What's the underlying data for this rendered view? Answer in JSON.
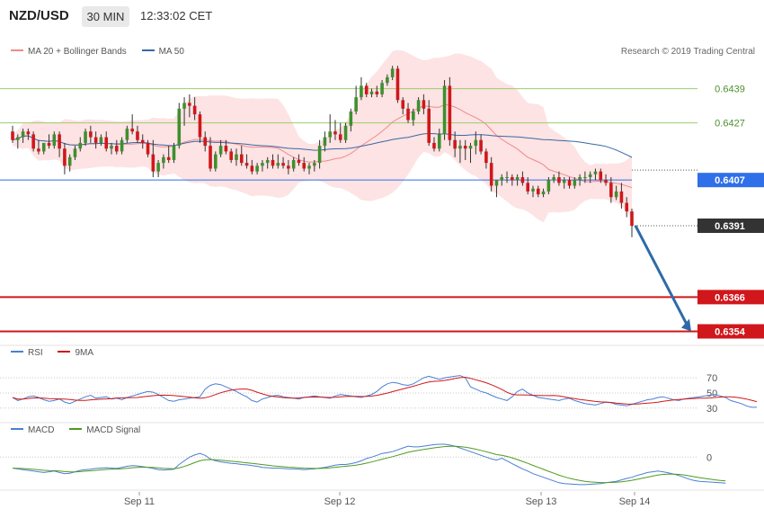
{
  "header": {
    "symbol": "NZD/USD",
    "timeframe": "30 MIN",
    "time": "12:33:02 CET"
  },
  "credit": "Research © 2019 Trading Central",
  "colors": {
    "bull": "#3f8f2f",
    "bear": "#d0171b",
    "bb_fill": "#fde3e3",
    "ma20": "#f08a8a",
    "ma50": "#3a67a6",
    "support": "#d0171b",
    "resistance": "#9ccc6d",
    "current": "#2f6fe8",
    "last": "#333333",
    "rsi": "#4a7fd3",
    "rsi_ma": "#d0171b",
    "macd": "#4a7fd3",
    "macd_signal": "#4f9a1f",
    "arrow": "#2f6aa8"
  },
  "legends": {
    "main": [
      {
        "label": "MA 20 + Bollinger Bands",
        "color": "#f08a8a"
      },
      {
        "label": "MA 50",
        "color": "#3a67a6"
      }
    ],
    "rsi": [
      {
        "label": "RSI",
        "color": "#4a7fd3"
      },
      {
        "label": "9MA",
        "color": "#d0171b"
      }
    ],
    "macd": [
      {
        "label": "MACD",
        "color": "#4a7fd3"
      },
      {
        "label": "MACD Signal",
        "color": "#4f9a1f"
      }
    ]
  },
  "chart_data": [
    {
      "type": "candlestick",
      "ylim": [
        0.6351,
        0.6448
      ],
      "levels": [
        {
          "value": 0.6439,
          "label": "0.6439",
          "kind": "resistance"
        },
        {
          "value": 0.6427,
          "label": "0.6427",
          "kind": "resistance"
        },
        {
          "value": 0.6407,
          "label": "0.6407",
          "kind": "current"
        },
        {
          "value": 0.6391,
          "label": "0.6391",
          "kind": "last"
        },
        {
          "value": 0.6366,
          "label": "0.6366",
          "kind": "support"
        },
        {
          "value": 0.6354,
          "label": "0.6354",
          "kind": "support"
        }
      ],
      "x_ticks": [
        "Sep 11",
        "Sep 12",
        "Sep 13",
        "Sep 14"
      ],
      "candles": [
        [
          0.6424,
          0.6426,
          0.642,
          0.6421
        ],
        [
          0.6421,
          0.6423,
          0.6418,
          0.6422
        ],
        [
          0.6422,
          0.6425,
          0.642,
          0.6424
        ],
        [
          0.6424,
          0.6425,
          0.6421,
          0.6423
        ],
        [
          0.6423,
          0.6424,
          0.6417,
          0.6418
        ],
        [
          0.6418,
          0.6421,
          0.6416,
          0.6417
        ],
        [
          0.6417,
          0.642,
          0.6416,
          0.642
        ],
        [
          0.642,
          0.6423,
          0.6418,
          0.6419
        ],
        [
          0.6419,
          0.6424,
          0.6418,
          0.6423
        ],
        [
          0.6423,
          0.6424,
          0.6415,
          0.6418
        ],
        [
          0.6418,
          0.642,
          0.6409,
          0.6412
        ],
        [
          0.6412,
          0.6416,
          0.641,
          0.6415
        ],
        [
          0.6415,
          0.6419,
          0.6414,
          0.6418
        ],
        [
          0.6418,
          0.6422,
          0.6417,
          0.642
        ],
        [
          0.642,
          0.6425,
          0.6419,
          0.6424
        ],
        [
          0.6424,
          0.6426,
          0.642,
          0.6422
        ],
        [
          0.6422,
          0.6424,
          0.6418,
          0.642
        ],
        [
          0.642,
          0.6423,
          0.6419,
          0.6422
        ],
        [
          0.6422,
          0.6424,
          0.6417,
          0.6418
        ],
        [
          0.6418,
          0.642,
          0.6416,
          0.6419
        ],
        [
          0.6419,
          0.6421,
          0.6416,
          0.6417
        ],
        [
          0.6417,
          0.6422,
          0.6416,
          0.6421
        ],
        [
          0.6421,
          0.6426,
          0.642,
          0.6425
        ],
        [
          0.6425,
          0.643,
          0.6423,
          0.6424
        ],
        [
          0.6424,
          0.6426,
          0.642,
          0.6421
        ],
        [
          0.6421,
          0.6423,
          0.6418,
          0.642
        ],
        [
          0.642,
          0.6421,
          0.6415,
          0.6416
        ],
        [
          0.6416,
          0.6421,
          0.6408,
          0.641
        ],
        [
          0.641,
          0.6414,
          0.6408,
          0.6413
        ],
        [
          0.6413,
          0.6416,
          0.6411,
          0.6415
        ],
        [
          0.6415,
          0.6419,
          0.6413,
          0.6414
        ],
        [
          0.6414,
          0.642,
          0.6413,
          0.6419
        ],
        [
          0.6419,
          0.6434,
          0.6418,
          0.6432
        ],
        [
          0.6432,
          0.6436,
          0.6426,
          0.6434
        ],
        [
          0.6434,
          0.6437,
          0.6429,
          0.6433
        ],
        [
          0.6433,
          0.6436,
          0.6428,
          0.643
        ],
        [
          0.643,
          0.6431,
          0.642,
          0.6422
        ],
        [
          0.6422,
          0.6424,
          0.6417,
          0.6419
        ],
        [
          0.6419,
          0.6422,
          0.641,
          0.6411
        ],
        [
          0.6411,
          0.6417,
          0.641,
          0.6416
        ],
        [
          0.6416,
          0.6421,
          0.6415,
          0.6419
        ],
        [
          0.6419,
          0.6421,
          0.6416,
          0.6417
        ],
        [
          0.6417,
          0.6418,
          0.6413,
          0.6414
        ],
        [
          0.6414,
          0.6418,
          0.6412,
          0.6416
        ],
        [
          0.6416,
          0.6419,
          0.6412,
          0.6413
        ],
        [
          0.6413,
          0.6416,
          0.6411,
          0.6412
        ],
        [
          0.6412,
          0.6414,
          0.6409,
          0.641
        ],
        [
          0.641,
          0.6413,
          0.6409,
          0.6412
        ],
        [
          0.6412,
          0.6414,
          0.641,
          0.6413
        ],
        [
          0.6413,
          0.6415,
          0.6411,
          0.6414
        ],
        [
          0.6414,
          0.6416,
          0.6411,
          0.6412
        ],
        [
          0.6412,
          0.6416,
          0.6411,
          0.6413
        ],
        [
          0.6413,
          0.6415,
          0.6411,
          0.6412
        ],
        [
          0.6412,
          0.6414,
          0.6409,
          0.6411
        ],
        [
          0.6411,
          0.6415,
          0.641,
          0.6414
        ],
        [
          0.6414,
          0.6416,
          0.6412,
          0.6413
        ],
        [
          0.6413,
          0.6415,
          0.641,
          0.6411
        ],
        [
          0.6411,
          0.6413,
          0.6409,
          0.6412
        ],
        [
          0.6412,
          0.6414,
          0.641,
          0.6413
        ],
        [
          0.6413,
          0.6421,
          0.6411,
          0.6419
        ],
        [
          0.6419,
          0.6424,
          0.6417,
          0.6422
        ],
        [
          0.6422,
          0.643,
          0.642,
          0.6424
        ],
        [
          0.6424,
          0.6428,
          0.6421,
          0.6423
        ],
        [
          0.6423,
          0.6427,
          0.642,
          0.6421
        ],
        [
          0.6421,
          0.6427,
          0.642,
          0.6426
        ],
        [
          0.6426,
          0.6432,
          0.6424,
          0.6431
        ],
        [
          0.6431,
          0.644,
          0.643,
          0.6436
        ],
        [
          0.6436,
          0.6443,
          0.6435,
          0.644
        ],
        [
          0.644,
          0.6441,
          0.6436,
          0.6437
        ],
        [
          0.6437,
          0.6439,
          0.6436,
          0.6438
        ],
        [
          0.6438,
          0.644,
          0.6436,
          0.6437
        ],
        [
          0.6437,
          0.6442,
          0.6436,
          0.6441
        ],
        [
          0.6441,
          0.6444,
          0.644,
          0.6443
        ],
        [
          0.6443,
          0.6447,
          0.6442,
          0.6446
        ],
        [
          0.6446,
          0.6447,
          0.6434,
          0.6435
        ],
        [
          0.6435,
          0.6436,
          0.643,
          0.6432
        ],
        [
          0.6432,
          0.6434,
          0.6427,
          0.6428
        ],
        [
          0.6428,
          0.6432,
          0.6426,
          0.6431
        ],
        [
          0.6431,
          0.6436,
          0.643,
          0.6435
        ],
        [
          0.6435,
          0.6437,
          0.643,
          0.6432
        ],
        [
          0.6432,
          0.6435,
          0.6419,
          0.642
        ],
        [
          0.642,
          0.6422,
          0.6417,
          0.6418
        ],
        [
          0.6418,
          0.6425,
          0.6417,
          0.6423
        ],
        [
          0.6423,
          0.6442,
          0.6421,
          0.644
        ],
        [
          0.644,
          0.6443,
          0.6419,
          0.6421
        ],
        [
          0.6421,
          0.6424,
          0.6415,
          0.6418
        ],
        [
          0.6418,
          0.6421,
          0.6413,
          0.6419
        ],
        [
          0.6419,
          0.6421,
          0.6414,
          0.6418
        ],
        [
          0.6418,
          0.642,
          0.6413,
          0.6419
        ],
        [
          0.6419,
          0.6424,
          0.6416,
          0.6421
        ],
        [
          0.6421,
          0.6423,
          0.6416,
          0.6417
        ],
        [
          0.6417,
          0.6418,
          0.6411,
          0.6413
        ],
        [
          0.6413,
          0.6415,
          0.6403,
          0.6405
        ],
        [
          0.6405,
          0.6407,
          0.6401,
          0.6407
        ],
        [
          0.6407,
          0.6409,
          0.6405,
          0.6408
        ],
        [
          0.6408,
          0.641,
          0.6406,
          0.6408
        ],
        [
          0.6408,
          0.6409,
          0.6405,
          0.6407
        ],
        [
          0.6407,
          0.6409,
          0.6405,
          0.6408
        ],
        [
          0.6408,
          0.641,
          0.6405,
          0.6406
        ],
        [
          0.6406,
          0.6408,
          0.6402,
          0.6403
        ],
        [
          0.6403,
          0.6405,
          0.6401,
          0.6404
        ],
        [
          0.6404,
          0.6405,
          0.6401,
          0.6402
        ],
        [
          0.6402,
          0.6404,
          0.6401,
          0.6403
        ],
        [
          0.6403,
          0.6408,
          0.6402,
          0.6407
        ],
        [
          0.6407,
          0.6409,
          0.6406,
          0.6408
        ],
        [
          0.6408,
          0.641,
          0.6405,
          0.6406
        ],
        [
          0.6406,
          0.6408,
          0.6404,
          0.6407
        ],
        [
          0.6407,
          0.6408,
          0.6404,
          0.6405
        ],
        [
          0.6405,
          0.6408,
          0.6404,
          0.6407
        ],
        [
          0.6407,
          0.6409,
          0.6405,
          0.6408
        ],
        [
          0.6408,
          0.641,
          0.6406,
          0.6408
        ],
        [
          0.6408,
          0.641,
          0.6406,
          0.6409
        ],
        [
          0.6409,
          0.6411,
          0.6407,
          0.641
        ],
        [
          0.641,
          0.6411,
          0.6406,
          0.6407
        ],
        [
          0.6407,
          0.6409,
          0.6405,
          0.6406
        ],
        [
          0.6406,
          0.6408,
          0.6399,
          0.6401
        ],
        [
          0.6401,
          0.6405,
          0.64,
          0.6403
        ],
        [
          0.6403,
          0.6406,
          0.6397,
          0.6399
        ],
        [
          0.6399,
          0.6401,
          0.6394,
          0.6396
        ],
        [
          0.6396,
          0.6397,
          0.6387,
          0.6391
        ]
      ]
    },
    {
      "type": "line",
      "name": "RSI",
      "ylim": [
        25,
        82
      ],
      "y_ticks": [
        70,
        50,
        30
      ],
      "values": [
        44,
        40,
        42,
        45,
        46,
        44,
        41,
        39,
        40,
        42,
        38,
        36,
        39,
        42,
        45,
        47,
        43,
        44,
        45,
        42,
        43,
        41,
        44,
        46,
        48,
        50,
        52,
        51,
        48,
        44,
        40,
        39,
        41,
        42,
        43,
        44,
        45,
        55,
        60,
        62,
        61,
        58,
        55,
        52,
        48,
        45,
        40,
        38,
        42,
        44,
        46,
        47,
        45,
        44,
        43,
        42,
        44,
        45,
        46,
        45,
        44,
        43,
        46,
        48,
        47,
        46,
        45,
        44,
        46,
        48,
        52,
        58,
        62,
        64,
        63,
        61,
        60,
        62,
        66,
        70,
        72,
        70,
        68,
        70,
        71,
        72,
        73,
        70,
        58,
        55,
        52,
        50,
        47,
        44,
        42,
        40,
        45,
        52,
        55,
        50,
        47,
        44,
        43,
        42,
        41,
        40,
        42,
        43,
        40,
        38,
        36,
        35,
        34,
        36,
        38,
        37,
        35,
        34,
        33,
        35,
        37,
        39,
        41,
        42,
        44,
        45,
        43,
        41,
        40,
        42,
        43,
        44,
        45,
        46,
        47,
        48,
        46,
        44,
        40,
        38,
        36,
        33,
        31,
        31
      ]
    },
    {
      "type": "line",
      "name": "MACD",
      "ylim": [
        -0.0009,
        0.0004
      ],
      "y_ticks": [
        0
      ],
      "values": [
        -0.0003,
        -0.00032,
        -0.00034,
        -0.00036,
        -0.00038,
        -0.0004,
        -0.00042,
        -0.0004,
        -0.00038,
        -0.00042,
        -0.00045,
        -0.00044,
        -0.0004,
        -0.00036,
        -0.00034,
        -0.00033,
        -0.00031,
        -0.0003,
        -0.00029,
        -0.0003,
        -0.00031,
        -0.00028,
        -0.00025,
        -0.00023,
        -0.00024,
        -0.00026,
        -0.00028,
        -0.00031,
        -0.00034,
        -0.00035,
        -0.00034,
        -0.00033,
        -0.0002,
        -0.0001,
        0,
        6e-05,
        0.0001,
        5e-05,
        -5e-05,
        -0.0001,
        -0.00013,
        -0.00015,
        -0.00017,
        -0.00018,
        -0.0002,
        -0.00021,
        -0.00023,
        -0.00025,
        -0.00028,
        -0.00029,
        -0.0003,
        -0.0003,
        -0.00031,
        -0.00032,
        -0.00032,
        -0.00033,
        -0.00034,
        -0.00033,
        -0.00032,
        -0.0003,
        -0.00028,
        -0.00025,
        -0.00022,
        -0.0002,
        -0.0002,
        -0.00018,
        -0.00015,
        -0.0001,
        -4e-05,
        0,
        5e-05,
        0.0001,
        0.00012,
        0.00015,
        0.0002,
        0.00025,
        0.0003,
        0.00028,
        0.00028,
        0.0003,
        0.00032,
        0.00034,
        0.00035,
        0.00035,
        0.00033,
        0.0003,
        0.00025,
        0.0002,
        0.00015,
        0.0001,
        5e-05,
        0,
        -5e-05,
        -8e-05,
        -3e-05,
        -0.0001,
        -0.00018,
        -0.00025,
        -0.00032,
        -0.00038,
        -0.00045,
        -0.0005,
        -0.00055,
        -0.0006,
        -0.00065,
        -0.0007,
        -0.00072,
        -0.00073,
        -0.00074,
        -0.00075,
        -0.00075,
        -0.00074,
        -0.00073,
        -0.00072,
        -0.0007,
        -0.00068,
        -0.00066,
        -0.00062,
        -0.00058,
        -0.00055,
        -0.0005,
        -0.00046,
        -0.00042,
        -0.0004,
        -0.00038,
        -0.0004,
        -0.00043,
        -0.00046,
        -0.0005,
        -0.00055,
        -0.0006,
        -0.00064,
        -0.00066,
        -0.00067,
        -0.00068,
        -0.00069,
        -0.0007,
        -0.00071
      ]
    }
  ]
}
